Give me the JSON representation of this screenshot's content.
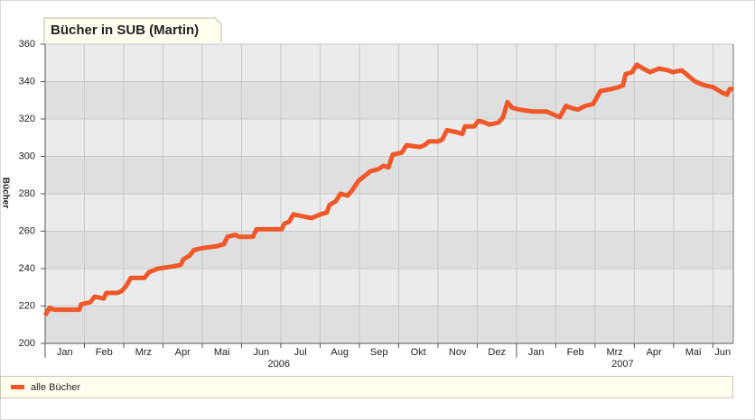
{
  "chart_data": {
    "type": "line",
    "title": "Bücher in SUB (Martin)",
    "y_label": "Bücher",
    "xlim": [
      0,
      17.52
    ],
    "ylim": [
      200,
      360
    ],
    "yticks": [
      200,
      220,
      240,
      260,
      280,
      300,
      320,
      340,
      360
    ],
    "xticks": [
      {
        "value": 0.5,
        "label": "Jan"
      },
      {
        "value": 1.5,
        "label": "Feb"
      },
      {
        "value": 2.5,
        "label": "Mrz"
      },
      {
        "value": 3.5,
        "label": "Apr"
      },
      {
        "value": 4.5,
        "label": "Mai"
      },
      {
        "value": 5.5,
        "label": "Jun"
      },
      {
        "value": 6.5,
        "label": "Jul"
      },
      {
        "value": 7.5,
        "label": "Aug"
      },
      {
        "value": 8.5,
        "label": "Sep"
      },
      {
        "value": 9.5,
        "label": "Okt"
      },
      {
        "value": 10.5,
        "label": "Nov"
      },
      {
        "value": 11.5,
        "label": "Dez"
      },
      {
        "value": 12.5,
        "label": "Jan"
      },
      {
        "value": 13.5,
        "label": "Feb"
      },
      {
        "value": 14.5,
        "label": "Mrz"
      },
      {
        "value": 15.5,
        "label": "Apr"
      },
      {
        "value": 16.5,
        "label": "Mai"
      },
      {
        "value": 17.25,
        "label": "Jun"
      }
    ],
    "year_labels": [
      {
        "value": 5.95,
        "label": "2006"
      },
      {
        "value": 14.7,
        "label": "2007"
      }
    ],
    "grid": true,
    "x": [
      0,
      0.11,
      0.23,
      0.87,
      0.92,
      1.15,
      1.26,
      1.49,
      1.56,
      1.84,
      1.95,
      2.07,
      2.18,
      2.53,
      2.64,
      2.87,
      3.22,
      3.45,
      3.52,
      3.68,
      3.79,
      4.02,
      4.37,
      4.55,
      4.64,
      4.83,
      4.94,
      5.29,
      5.38,
      5.86,
      6.02,
      6.09,
      6.21,
      6.32,
      6.55,
      6.78,
      7.01,
      7.17,
      7.24,
      7.4,
      7.52,
      7.7,
      7.82,
      7.98,
      8.16,
      8.28,
      8.46,
      8.62,
      8.74,
      8.85,
      9.08,
      9.2,
      9.54,
      9.66,
      9.77,
      10.0,
      10.11,
      10.23,
      10.46,
      10.62,
      10.69,
      10.92,
      11.03,
      11.2,
      11.31,
      11.54,
      11.66,
      11.77,
      11.89,
      12.07,
      12.41,
      12.76,
      12.99,
      13.1,
      13.26,
      13.38,
      13.56,
      13.75,
      13.95,
      14.14,
      14.41,
      14.6,
      14.71,
      14.78,
      14.94,
      15.06,
      15.22,
      15.4,
      15.63,
      15.86,
      15.98,
      16.21,
      16.32,
      16.55,
      16.78,
      17.01,
      17.24,
      17.36,
      17.43,
      17.52
    ],
    "series": [
      {
        "name": "alle Bücher",
        "color": "#f0582a",
        "values": [
          215,
          219,
          218,
          218,
          221,
          222,
          225,
          224,
          227,
          227,
          228,
          231,
          235,
          235,
          238,
          240,
          241,
          242,
          245,
          247,
          250,
          251,
          252,
          253,
          257,
          258,
          257,
          257,
          261,
          261,
          261,
          264,
          265,
          269,
          268,
          267,
          269,
          270,
          274,
          276,
          280,
          279,
          282,
          287,
          290,
          292,
          293,
          295,
          294,
          301,
          302,
          306,
          305,
          306,
          308,
          308,
          309,
          314,
          313,
          312,
          316,
          316,
          319,
          318,
          317,
          318,
          321,
          329,
          326,
          325,
          324,
          324,
          322,
          321,
          327,
          326,
          325,
          327,
          328,
          335,
          336,
          337,
          338,
          344,
          345,
          349,
          347,
          345,
          347,
          346,
          345,
          346,
          344,
          340,
          338,
          337,
          334,
          333,
          336,
          336
        ]
      }
    ]
  }
}
